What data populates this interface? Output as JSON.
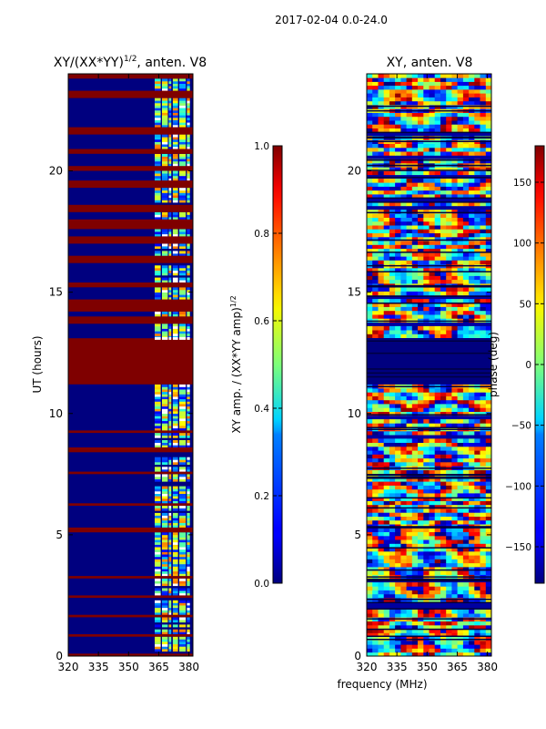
{
  "figure": {
    "suptitle": "2017-02-04 0.0-24.0",
    "xlabel_shared": "frequency (MHz)"
  },
  "chart_data": [
    {
      "type": "heatmap",
      "title_main": "XY/(XX*YY)",
      "title_sup": "1/2",
      "title_tail": ", anten. V8",
      "ylabel": "UT (hours)",
      "xlim": [
        320,
        382
      ],
      "ylim": [
        0,
        24
      ],
      "xticks": [
        "320",
        "335",
        "350",
        "365",
        "380"
      ],
      "xtick_values": [
        320,
        335,
        350,
        365,
        380
      ],
      "yticks": [
        "0",
        "5",
        "10",
        "15",
        "20"
      ],
      "ytick_values": [
        0,
        5,
        10,
        15,
        20
      ],
      "colorbar": {
        "label_main": "XY amp. / (XX*YY amp)",
        "label_sup": "1/2",
        "range": [
          0.0,
          1.0
        ],
        "ticks": [
          "0.0",
          "0.2",
          "0.4",
          "0.6",
          "0.8",
          "1.0"
        ],
        "tick_values": [
          0.0,
          0.2,
          0.4,
          0.6,
          0.8,
          1.0
        ],
        "colormap": "jet"
      },
      "saturated_bands_ut": [
        [
          0.0,
          0.1
        ],
        [
          0.8,
          0.9
        ],
        [
          1.6,
          1.7
        ],
        [
          2.4,
          2.5
        ],
        [
          3.2,
          3.3
        ],
        [
          5.1,
          5.3
        ],
        [
          6.2,
          6.3
        ],
        [
          7.5,
          7.6
        ],
        [
          8.4,
          8.6
        ],
        [
          9.2,
          9.3
        ],
        [
          11.2,
          13.1
        ],
        [
          13.7,
          14.0
        ],
        [
          14.2,
          14.7
        ],
        [
          15.2,
          15.4
        ],
        [
          16.2,
          16.5
        ],
        [
          17.0,
          17.3
        ],
        [
          17.6,
          18.0
        ],
        [
          18.3,
          18.6
        ],
        [
          19.3,
          19.6
        ],
        [
          20.0,
          20.2
        ],
        [
          20.7,
          20.9
        ],
        [
          21.5,
          21.8
        ],
        [
          23.0,
          23.3
        ],
        [
          23.8,
          24.0
        ]
      ]
    },
    {
      "type": "heatmap",
      "title": "XY, anten. V8",
      "xlim": [
        320,
        382
      ],
      "ylim": [
        0,
        24
      ],
      "xticks": [
        "320",
        "335",
        "350",
        "365",
        "380"
      ],
      "xtick_values": [
        320,
        335,
        350,
        365,
        380
      ],
      "yticks": [
        "0",
        "5",
        "10",
        "15",
        "20"
      ],
      "ytick_values": [
        0,
        5,
        10,
        15,
        20
      ],
      "colorbar": {
        "label": "phase (deg)",
        "range": [
          -180,
          180
        ],
        "ticks": [
          "−150",
          "−100",
          "−50",
          "0",
          "50",
          "100",
          "150"
        ],
        "tick_values": [
          -150,
          -100,
          -50,
          0,
          50,
          100,
          150
        ],
        "colormap": "jet"
      },
      "flagged_band_ut": [
        11.2,
        13.1
      ]
    }
  ]
}
